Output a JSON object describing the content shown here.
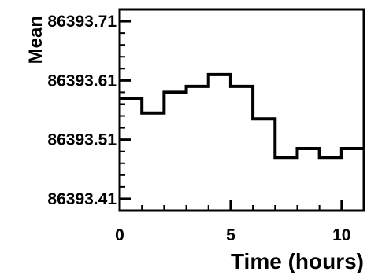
{
  "chart_data": {
    "type": "line",
    "style": "step",
    "xlabel": "Time (hours)",
    "ylabel": "Mean",
    "xlim": [
      0,
      11
    ],
    "ylim": [
      86393.39,
      86393.73
    ],
    "x_ticks": [
      0,
      5,
      10
    ],
    "x_tick_labels": [
      "0",
      "5",
      "10"
    ],
    "y_ticks": [
      86393.41,
      86393.51,
      86393.61,
      86393.71
    ],
    "y_tick_labels": [
      "86393.41",
      "86393.51",
      "86393.61",
      "86393.71"
    ],
    "bin_edges": [
      0,
      1,
      2,
      3,
      4,
      5,
      6,
      7,
      8,
      9,
      10,
      11
    ],
    "values": [
      86393.58,
      86393.555,
      86393.59,
      86393.6,
      86393.62,
      86393.6,
      86393.545,
      86393.48,
      86393.495,
      86393.48,
      86393.495
    ],
    "grid": false,
    "legend": "none",
    "line_color": "#000000"
  }
}
